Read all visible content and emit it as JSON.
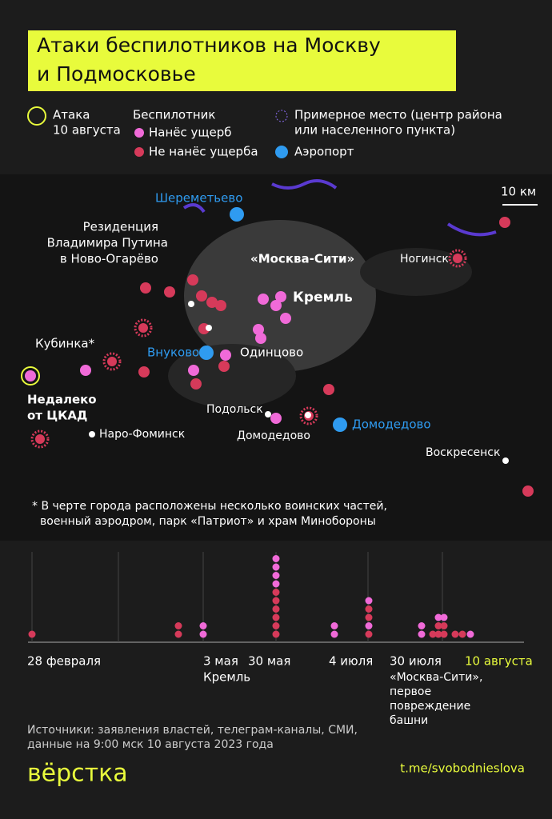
{
  "header": {
    "title_lines": [
      "Атаки беспилотников на Москву",
      "и Подмосковье"
    ]
  },
  "legend": {
    "attack": [
      "Атака",
      "10 августа"
    ],
    "drone_title": "Беспилотник",
    "damaged": "Нанёс ущерб",
    "not_damaged": "Не нанёс ущерба",
    "approx": [
      "Примерное место (центр района",
      "или населенного пункта)"
    ],
    "airport": "Аэропорт"
  },
  "map": {
    "scale": "10 км",
    "sheremetyevo": "Шереметьево",
    "residence": [
      "Резиденция",
      "Владимира Путина",
      "в Ново-Огарёво"
    ],
    "moscow_city": "«Москва-Сити»",
    "kremlin": "Кремль",
    "noginsk": "Ногинск",
    "kubinka": "Кубинка*",
    "vnukovo": "Внуково",
    "odintsovo": "Одинцово",
    "ckad": [
      "Недалеко",
      "от ЦКАД"
    ],
    "podolsk": "Подольск",
    "domodedovo_town": "Домодедово",
    "domodedovo_airport": "Домодедово",
    "naro_fominsk": "Наро-Фоминск",
    "voskresensk": "Воскресенск",
    "footnote": [
      "* В черте города расположены несколько воинских частей,",
      "военный аэродром, парк «Патриот» и храм Минобороны"
    ]
  },
  "timeline": {
    "labels": [
      "28 февраля",
      "3 мая",
      "30 мая",
      "4 июля",
      "30 июля",
      "10 августа"
    ],
    "kremlin_note": "Кремль",
    "city_note": [
      "«Москва-Сити»,",
      "первое",
      "повреждение",
      "башни"
    ]
  },
  "footer": {
    "sources": [
      "Источники: заявления властей, телеграм-каналы, СМИ,",
      "данные на 9:00 мск 10 августа 2023 года"
    ],
    "logo": "вёрстка",
    "link": "t.me/svobodnieslova"
  }
}
